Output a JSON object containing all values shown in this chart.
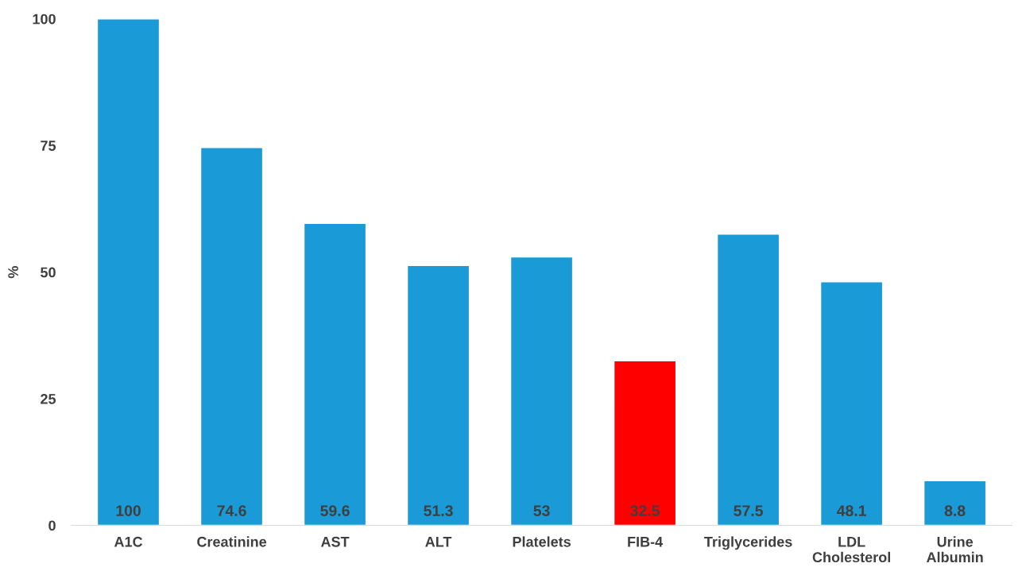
{
  "chart_data": {
    "type": "bar",
    "ylabel": "%",
    "categories": [
      "A1C",
      "Creatinine",
      "AST",
      "ALT",
      "Platelets",
      "FIB-4",
      "Triglycerides",
      "LDL\nCholesterol",
      "Urine\nAlbumin"
    ],
    "values": [
      100,
      74.6,
      59.6,
      51.3,
      53,
      32.5,
      57.5,
      48.1,
      8.8
    ],
    "colors": [
      "#1a9ad6",
      "#1a9ad6",
      "#1a9ad6",
      "#1a9ad6",
      "#1a9ad6",
      "#ff0000",
      "#1a9ad6",
      "#1a9ad6",
      "#1a9ad6"
    ],
    "ylim": [
      0,
      100
    ],
    "yticks": [
      0,
      25,
      50,
      75,
      100
    ],
    "grid": false,
    "data_labels": true
  }
}
